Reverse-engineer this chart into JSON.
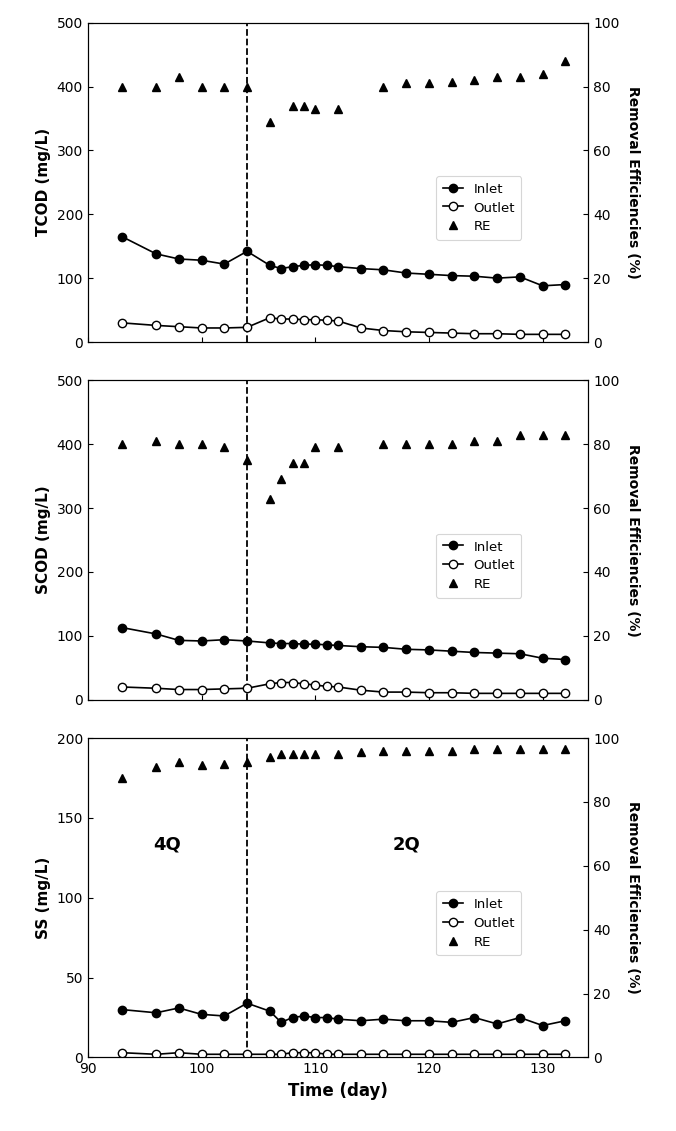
{
  "tcod": {
    "x_inlet": [
      93,
      96,
      98,
      100,
      102,
      104,
      106,
      107,
      108,
      109,
      110,
      111,
      112,
      114,
      116,
      118,
      120,
      122,
      124,
      126,
      128,
      130,
      132
    ],
    "inlet": [
      165,
      138,
      130,
      128,
      122,
      142,
      120,
      115,
      118,
      120,
      121,
      120,
      118,
      115,
      113,
      108,
      106,
      104,
      103,
      100,
      102,
      88,
      90
    ],
    "x_outlet": [
      93,
      96,
      98,
      100,
      102,
      104,
      106,
      107,
      108,
      109,
      110,
      111,
      112,
      114,
      116,
      118,
      120,
      122,
      124,
      126,
      128,
      130,
      132
    ],
    "outlet": [
      30,
      26,
      24,
      22,
      22,
      23,
      38,
      36,
      36,
      35,
      35,
      34,
      33,
      22,
      18,
      16,
      15,
      14,
      13,
      13,
      12,
      12,
      12
    ],
    "x_re": [
      93,
      96,
      98,
      100,
      102,
      104,
      106,
      108,
      109,
      110,
      112,
      116,
      118,
      120,
      122,
      124,
      126,
      128,
      130,
      132
    ],
    "re": [
      80,
      80,
      83,
      80,
      80,
      80,
      69,
      74,
      74,
      73,
      73,
      80,
      81,
      81,
      81.5,
      82,
      83,
      83,
      84,
      88
    ],
    "ylim": [
      0,
      500
    ],
    "ylabel": "TCOD (mg/L)",
    "re_ylim": [
      0,
      100
    ],
    "yticks": [
      0,
      100,
      200,
      300,
      400,
      500
    ]
  },
  "scod": {
    "x_inlet": [
      93,
      96,
      98,
      100,
      102,
      104,
      106,
      107,
      108,
      109,
      110,
      111,
      112,
      114,
      116,
      118,
      120,
      122,
      124,
      126,
      128,
      130,
      132
    ],
    "inlet": [
      113,
      103,
      93,
      92,
      94,
      92,
      89,
      88,
      88,
      87,
      87,
      86,
      85,
      83,
      82,
      79,
      78,
      76,
      74,
      73,
      72,
      65,
      63
    ],
    "x_outlet": [
      93,
      96,
      98,
      100,
      102,
      104,
      106,
      107,
      108,
      109,
      110,
      111,
      112,
      114,
      116,
      118,
      120,
      122,
      124,
      126,
      128,
      130,
      132
    ],
    "outlet": [
      20,
      18,
      16,
      16,
      17,
      18,
      25,
      27,
      27,
      25,
      23,
      21,
      20,
      15,
      12,
      12,
      11,
      11,
      10,
      10,
      10,
      10,
      10
    ],
    "x_re": [
      93,
      96,
      98,
      100,
      102,
      104,
      106,
      107,
      108,
      109,
      110,
      112,
      116,
      118,
      120,
      122,
      124,
      126,
      128,
      130,
      132
    ],
    "re": [
      80,
      81,
      80,
      80,
      79,
      75,
      63,
      69,
      74,
      74,
      79,
      79,
      80,
      80,
      80,
      80,
      81,
      81,
      83,
      83,
      83
    ],
    "ylim": [
      0,
      500
    ],
    "ylabel": "SCOD (mg/L)",
    "re_ylim": [
      0,
      100
    ],
    "yticks": [
      0,
      100,
      200,
      300,
      400,
      500
    ]
  },
  "ss": {
    "x_inlet": [
      93,
      96,
      98,
      100,
      102,
      104,
      106,
      107,
      108,
      109,
      110,
      111,
      112,
      114,
      116,
      118,
      120,
      122,
      124,
      126,
      128,
      130,
      132
    ],
    "inlet": [
      30,
      28,
      31,
      27,
      26,
      34,
      29,
      22,
      25,
      26,
      25,
      25,
      24,
      23,
      24,
      23,
      23,
      22,
      25,
      21,
      25,
      20,
      23
    ],
    "x_outlet": [
      93,
      96,
      98,
      100,
      102,
      104,
      106,
      107,
      108,
      109,
      110,
      111,
      112,
      114,
      116,
      118,
      120,
      122,
      124,
      126,
      128,
      130,
      132
    ],
    "outlet": [
      3,
      2,
      3,
      2,
      2,
      2,
      2,
      2,
      3,
      3,
      3,
      2,
      2,
      2,
      2,
      2,
      2,
      2,
      2,
      2,
      2,
      2,
      2
    ],
    "x_re": [
      93,
      96,
      98,
      100,
      102,
      104,
      106,
      107,
      108,
      109,
      110,
      112,
      114,
      116,
      118,
      120,
      122,
      124,
      126,
      128,
      130,
      132
    ],
    "re": [
      87.5,
      91,
      92.5,
      91.5,
      92,
      92.5,
      94,
      95,
      95,
      95,
      95,
      95,
      95.5,
      96,
      96,
      96,
      96,
      96.5,
      96.5,
      96.5,
      96.5,
      96.5
    ],
    "ylim": [
      0,
      200
    ],
    "ylabel": "SS (mg/L)",
    "re_ylim": [
      0,
      100
    ],
    "yticks": [
      0,
      50,
      100,
      150,
      200
    ]
  },
  "dashed_x": 104,
  "xlabel": "Time (day)",
  "xlim": [
    90,
    134
  ],
  "xticks": [
    90,
    100,
    110,
    120,
    130
  ],
  "re_yticks": [
    0,
    20,
    40,
    60,
    80,
    100
  ],
  "legend_labels": [
    "Inlet",
    "Outlet",
    "RE"
  ],
  "linewidth": 1.2,
  "markersize": 6,
  "label_4Q": {
    "x": 97,
    "text": "4Q"
  },
  "label_2Q": {
    "x": 118,
    "text": "2Q"
  }
}
